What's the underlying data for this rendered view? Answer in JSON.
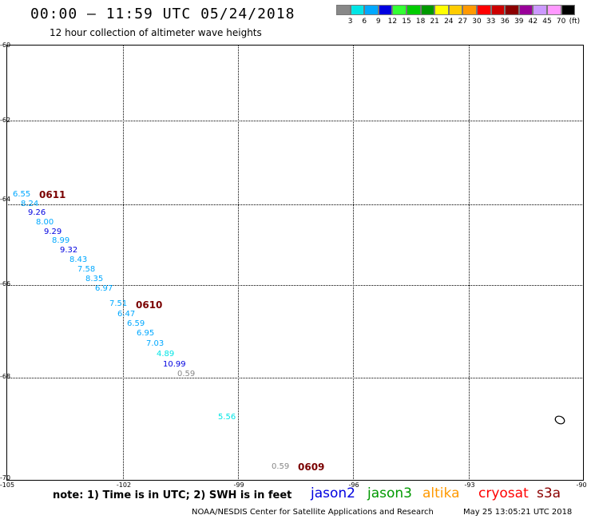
{
  "title": "00:00 — 11:59 UTC 05/24/2018",
  "subtitle": "12 hour collection of altimeter wave heights",
  "colorbar": {
    "colors": [
      "#888888",
      "#00e5e5",
      "#00a8ff",
      "#0000e0",
      "#33ff33",
      "#00cc00",
      "#009900",
      "#ffff00",
      "#ffcc00",
      "#ff9900",
      "#ff0000",
      "#cc0000",
      "#8b0000",
      "#990099",
      "#cc99ff",
      "#ff99ff",
      "#000000"
    ],
    "labels": [
      "3",
      "6",
      "9",
      "12",
      "15",
      "18",
      "21",
      "24",
      "27",
      "30",
      "33",
      "36",
      "39",
      "42",
      "45",
      "70"
    ],
    "unit": "(ft)"
  },
  "lat_labels": [
    "-60",
    "-62",
    "-64",
    "-66",
    "-68",
    "-70"
  ],
  "lon_labels": [
    "-105",
    "-102",
    "-99",
    "-96",
    "-93",
    "-90"
  ],
  "map": {
    "swh_values": [
      {
        "value": "6.55",
        "color": "#00a8ff"
      },
      {
        "value": "8.24",
        "color": "#00a8ff"
      },
      {
        "value": "9.26",
        "color": "#0000e0"
      },
      {
        "value": "8.00",
        "color": "#00a8ff"
      },
      {
        "value": "9.29",
        "color": "#0000e0"
      },
      {
        "value": "8.99",
        "color": "#00a8ff"
      },
      {
        "value": "9.32",
        "color": "#0000e0"
      },
      {
        "value": "8.43",
        "color": "#00a8ff"
      },
      {
        "value": "7.58",
        "color": "#00a8ff"
      },
      {
        "value": "8.35",
        "color": "#00a8ff"
      },
      {
        "value": "6.97",
        "color": "#00a8ff"
      },
      {
        "value": "7.51",
        "color": "#00a8ff"
      },
      {
        "value": "6.47",
        "color": "#00a8ff"
      },
      {
        "value": "6.59",
        "color": "#00a8ff"
      },
      {
        "value": "6.95",
        "color": "#00a8ff"
      },
      {
        "value": "7.03",
        "color": "#00a8ff"
      },
      {
        "value": "4.89",
        "color": "#00e5e5"
      },
      {
        "value": "10.99",
        "color": "#0000e0"
      },
      {
        "value": "0.59",
        "color": "#888888"
      },
      {
        "value": "5.56",
        "color": "#00e5e5"
      },
      {
        "value": "0.59",
        "color": "#888888"
      }
    ],
    "passes": [
      "0611",
      "0610",
      "0609"
    ]
  },
  "note": "note: 1) Time is in UTC; 2) SWH is in feet",
  "legend": [
    {
      "name": "jason2",
      "color": "#0000e0"
    },
    {
      "name": "jason3",
      "color": "#009900"
    },
    {
      "name": "altika",
      "color": "#ff9900"
    },
    {
      "name": "cryosat",
      "color": "#ff0000"
    },
    {
      "name": "s3a",
      "color": "#8b0000"
    }
  ],
  "footer": {
    "credit": "NOAA/NESDIS Center for Satellite Applications and Research",
    "timestamp": "May 25 13:05:21 UTC 2018"
  }
}
